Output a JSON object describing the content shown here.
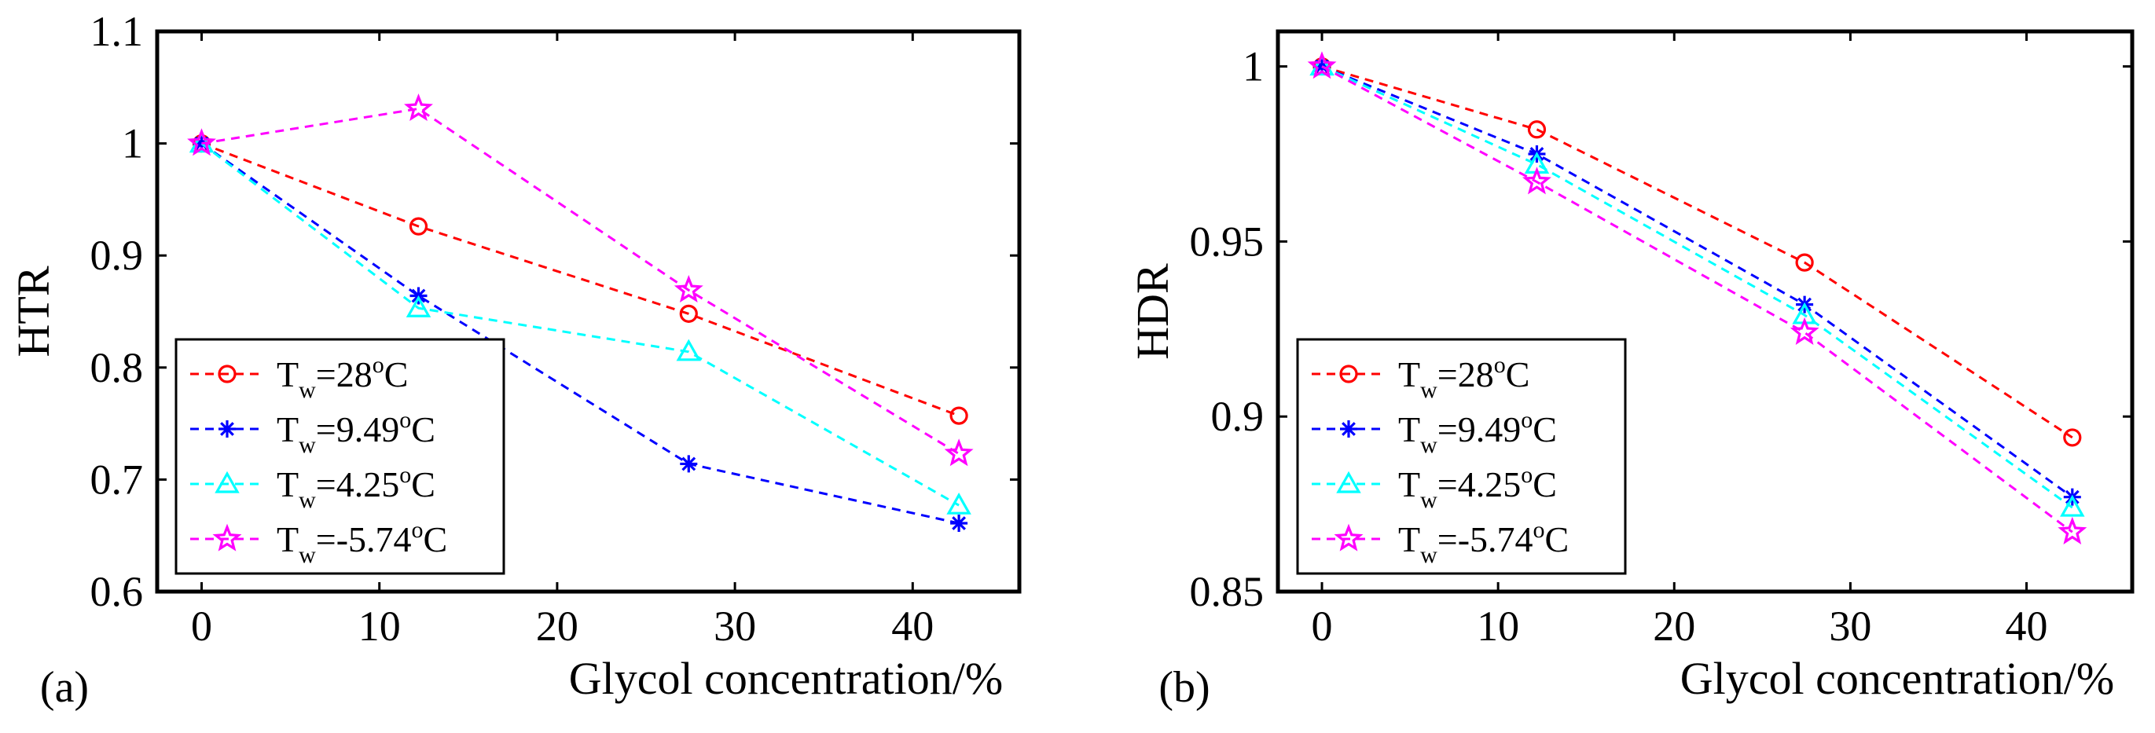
{
  "figure": {
    "panels": [
      "(a)",
      "(b)"
    ]
  },
  "chart_data": [
    {
      "type": "line",
      "panel_label": "(a)",
      "xlabel": "Glycol concentration/%",
      "ylabel": "HTR",
      "xlim": [
        -2.5,
        46
      ],
      "ylim": [
        0.6,
        1.1
      ],
      "xticks": [
        0,
        10,
        20,
        30,
        40
      ],
      "yticks": [
        0.6,
        0.7,
        0.8,
        0.9,
        1.0,
        1.1
      ],
      "xtick_labels": [
        "0",
        "10",
        "20",
        "30",
        "40"
      ],
      "ytick_labels": [
        "0.6",
        "0.7",
        "0.8",
        "0.9",
        "1",
        "1.1"
      ],
      "x": [
        0,
        12.2,
        27.4,
        42.6
      ],
      "legend_position": "bottom-left",
      "series": [
        {
          "name": "T_w=28°C",
          "label_main": "T",
          "label_sub": "w",
          "label_val": "=28",
          "label_sup": "o",
          "label_unit": "C",
          "color": "#ff0000",
          "marker": "circle",
          "values": [
            1.0,
            0.926,
            0.848,
            0.757
          ]
        },
        {
          "name": "T_w=9.49°C",
          "label_main": "T",
          "label_sub": "w",
          "label_val": "=9.49",
          "label_sup": "o",
          "label_unit": "C",
          "color": "#0000ff",
          "marker": "asterisk",
          "values": [
            1.0,
            0.864,
            0.714,
            0.661
          ]
        },
        {
          "name": "T_w=4.25°C",
          "label_main": "T",
          "label_sub": "w",
          "label_val": "=4.25",
          "label_sup": "o",
          "label_unit": "C",
          "color": "#00ffff",
          "marker": "triangle",
          "values": [
            1.0,
            0.853,
            0.814,
            0.677
          ]
        },
        {
          "name": "T_w=-5.74°C",
          "label_main": "T",
          "label_sub": "w",
          "label_val": "=-5.74",
          "label_sup": "o",
          "label_unit": "C",
          "color": "#ff00ff",
          "marker": "star",
          "values": [
            1.0,
            1.031,
            0.869,
            0.723
          ]
        }
      ]
    },
    {
      "type": "line",
      "panel_label": "(b)",
      "xlabel": "Glycol concentration/%",
      "ylabel": "HDR",
      "xlim": [
        -2.5,
        46
      ],
      "ylim": [
        0.85,
        1.01
      ],
      "xticks": [
        0,
        10,
        20,
        30,
        40
      ],
      "yticks": [
        0.85,
        0.9,
        0.95,
        1.0
      ],
      "xtick_labels": [
        "0",
        "10",
        "20",
        "30",
        "40"
      ],
      "ytick_labels": [
        "0.85",
        "0.9",
        "0.95",
        "1"
      ],
      "x": [
        0,
        12.2,
        27.4,
        42.6
      ],
      "legend_position": "bottom-left",
      "series": [
        {
          "name": "T_w=28°C",
          "label_main": "T",
          "label_sub": "w",
          "label_val": "=28",
          "label_sup": "o",
          "label_unit": "C",
          "color": "#ff0000",
          "marker": "circle",
          "values": [
            1.0,
            0.982,
            0.944,
            0.894
          ]
        },
        {
          "name": "T_w=9.49°C",
          "label_main": "T",
          "label_sub": "w",
          "label_val": "=9.49",
          "label_sup": "o",
          "label_unit": "C",
          "color": "#0000ff",
          "marker": "asterisk",
          "values": [
            1.0,
            0.975,
            0.932,
            0.877
          ]
        },
        {
          "name": "T_w=4.25°C",
          "label_main": "T",
          "label_sub": "w",
          "label_val": "=4.25",
          "label_sup": "o",
          "label_unit": "C",
          "color": "#00ffff",
          "marker": "triangle",
          "values": [
            1.0,
            0.972,
            0.929,
            0.874
          ]
        },
        {
          "name": "T_w=-5.74°C",
          "label_main": "T",
          "label_sub": "w",
          "label_val": "=-5.74",
          "label_sup": "o",
          "label_unit": "C",
          "color": "#ff00ff",
          "marker": "star",
          "values": [
            1.0,
            0.967,
            0.924,
            0.867
          ]
        }
      ]
    }
  ]
}
